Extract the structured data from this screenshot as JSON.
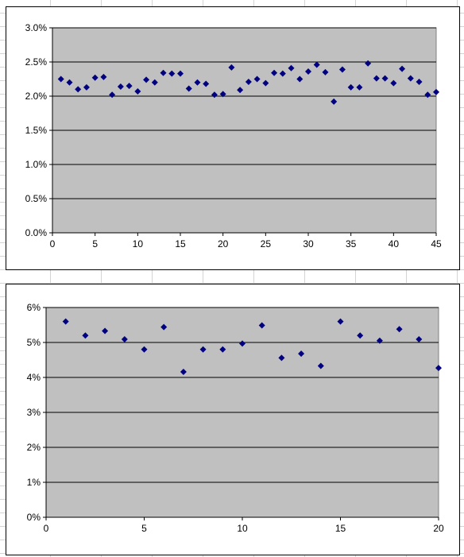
{
  "chart_data": [
    {
      "type": "scatter",
      "title": "",
      "xlabel": "",
      "ylabel": "",
      "xlim": [
        0,
        45
      ],
      "ylim": [
        0,
        0.03
      ],
      "x_ticks": [
        0,
        5,
        10,
        15,
        20,
        25,
        30,
        35,
        40,
        45
      ],
      "y_ticks": [
        0,
        0.005,
        0.01,
        0.015,
        0.02,
        0.025,
        0.03
      ],
      "x_tick_labels": [
        "0",
        "5",
        "10",
        "15",
        "20",
        "25",
        "30",
        "35",
        "40",
        "45"
      ],
      "y_tick_labels": [
        "0.0%",
        "0.5%",
        "1.0%",
        "1.5%",
        "2.0%",
        "2.5%",
        "3.0%"
      ],
      "grid": true,
      "legend": "none",
      "plot_bg": "#c0c0c0",
      "marker_color": "#000080",
      "series": [
        {
          "x": [
            1,
            2,
            3,
            4,
            5,
            6,
            7,
            8,
            9,
            10,
            11,
            12,
            13,
            14,
            15,
            16,
            17,
            18,
            19,
            20,
            21,
            22,
            23,
            24,
            25,
            26,
            27,
            28,
            29,
            30,
            31,
            32,
            33,
            34,
            35,
            36,
            37,
            38,
            39,
            40,
            41,
            42,
            43,
            44,
            45
          ],
          "y": [
            0.0225,
            0.022,
            0.021,
            0.0213,
            0.0227,
            0.0228,
            0.0202,
            0.0214,
            0.0215,
            0.0207,
            0.0224,
            0.022,
            0.0234,
            0.0233,
            0.0233,
            0.0211,
            0.022,
            0.0218,
            0.0202,
            0.0203,
            0.0242,
            0.0209,
            0.0221,
            0.0225,
            0.0219,
            0.0234,
            0.0233,
            0.0241,
            0.0225,
            0.0236,
            0.0246,
            0.0235,
            0.0192,
            0.0239,
            0.0213,
            0.0213,
            0.0248,
            0.0226,
            0.0226,
            0.0219,
            0.024,
            0.0226,
            0.0221,
            0.0202,
            0.0206
          ]
        }
      ]
    },
    {
      "type": "scatter",
      "title": "",
      "xlabel": "",
      "ylabel": "",
      "xlim": [
        0,
        20
      ],
      "ylim": [
        0,
        0.06
      ],
      "x_ticks": [
        0,
        5,
        10,
        15,
        20
      ],
      "y_ticks": [
        0,
        0.01,
        0.02,
        0.03,
        0.04,
        0.05,
        0.06
      ],
      "x_tick_labels": [
        "0",
        "5",
        "10",
        "15",
        "20"
      ],
      "y_tick_labels": [
        "0%",
        "1%",
        "2%",
        "3%",
        "4%",
        "5%",
        "6%"
      ],
      "grid": true,
      "legend": "none",
      "plot_bg": "#c0c0c0",
      "marker_color": "#000080",
      "series": [
        {
          "x": [
            1,
            2,
            3,
            4,
            5,
            6,
            7,
            8,
            9,
            10,
            11,
            12,
            13,
            14,
            15,
            16,
            17,
            18,
            19,
            20
          ],
          "y": [
            0.056,
            0.052,
            0.0533,
            0.0509,
            0.048,
            0.0544,
            0.0416,
            0.048,
            0.048,
            0.0497,
            0.0549,
            0.0456,
            0.0468,
            0.0433,
            0.056,
            0.052,
            0.0505,
            0.0538,
            0.0509,
            0.0427
          ]
        }
      ]
    }
  ]
}
